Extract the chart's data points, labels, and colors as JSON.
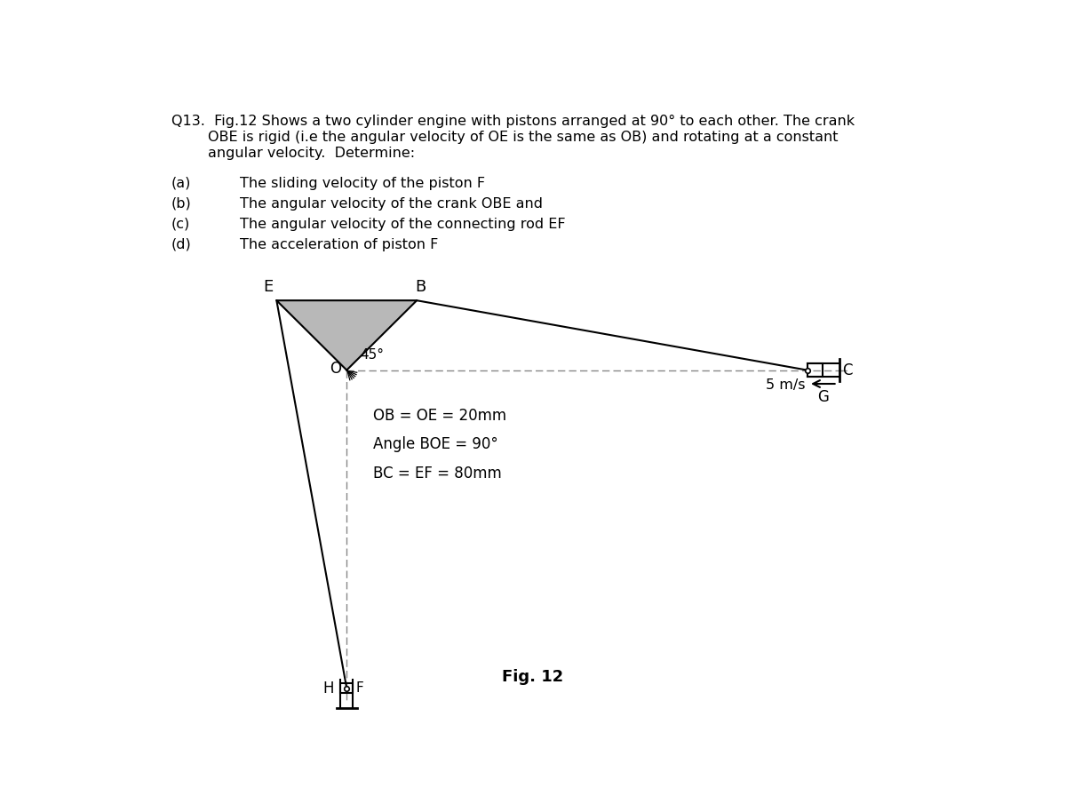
{
  "title_line1": "Q13.  Fig.12 Shows a two cylinder engine with pistons arranged at 90° to each other. The crank",
  "title_line2": "        OBE is rigid (i.e the angular velocity of OE is the same as OB) and rotating at a constant",
  "title_line3": "        angular velocity.  Determine:",
  "parts": [
    [
      "(a)",
      "The sliding velocity of the piston F"
    ],
    [
      "(b)",
      "The angular velocity of the crank OBE and"
    ],
    [
      "(c)",
      "The angular velocity of the connecting rod EF"
    ],
    [
      "(d)",
      "The acceleration of piston F"
    ]
  ],
  "info_lines": [
    "OB = OE = 20mm",
    "Angle BOE = 90°",
    "BC = EF = 80mm"
  ],
  "fig_label": "Fig. 12",
  "speed_label": "5 m/s",
  "label_O": "O",
  "label_E": "E",
  "label_B": "B",
  "label_C": "C",
  "label_F": "F",
  "label_H": "H",
  "label_G": "G",
  "angle_label": "45°",
  "bg_color": "#ffffff",
  "line_color": "#000000",
  "fill_color": "#b8b8b8",
  "dashed_color": "#888888",
  "ox": 3.1,
  "oy": 5.05,
  "scale": 0.072,
  "OB_mm": 20,
  "OE_mm": 20,
  "BC_mm": 80,
  "EF_mm": 80
}
